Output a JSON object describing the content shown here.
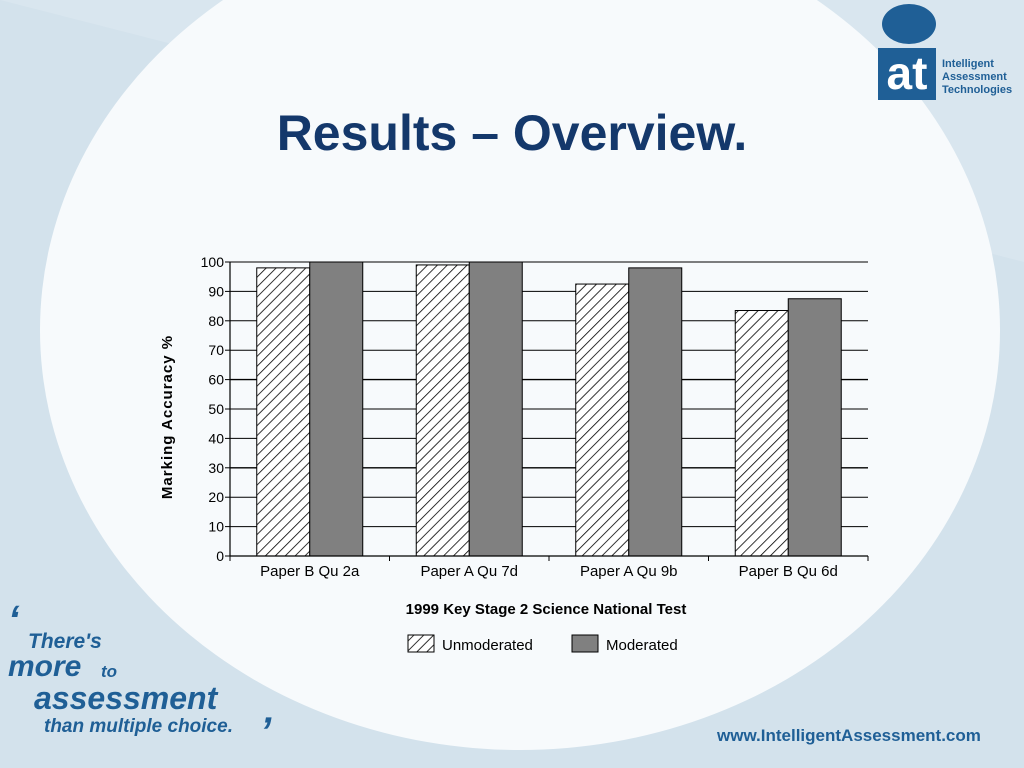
{
  "slide": {
    "title": "Results – Overview.",
    "url": "www.IntelligentAssessment.com",
    "colors": {
      "title": "#14386b",
      "brand": "#1f5f96",
      "background": "#d9e6ef"
    }
  },
  "logo": {
    "mark": "at",
    "lines": [
      "Intelligent",
      "Assessment",
      "Technologies"
    ]
  },
  "slogan": {
    "open_quote": "‘",
    "line1": "There's",
    "line2a": "more",
    "line2b": "to",
    "line3": "assessment",
    "line4": "than multiple choice.",
    "close_quote": "’"
  },
  "chart_data": {
    "type": "bar",
    "title": "",
    "xlabel": "1999 Key Stage 2 Science National Test",
    "ylabel": "Marking Accuracy %",
    "ylim": [
      0,
      100
    ],
    "yticks": [
      0,
      10,
      20,
      30,
      40,
      50,
      60,
      70,
      80,
      90,
      100
    ],
    "grid": true,
    "legend_position": "bottom",
    "categories": [
      "Paper B Qu 2a",
      "Paper A Qu 7d",
      "Paper A Qu 9b",
      "Paper B Qu 6d"
    ],
    "series": [
      {
        "name": "Unmoderated",
        "values": [
          98,
          99,
          92.5,
          83.5
        ],
        "fill": "hatch"
      },
      {
        "name": "Moderated",
        "values": [
          100,
          100,
          98,
          87.5
        ],
        "fill": "#808080"
      }
    ]
  }
}
